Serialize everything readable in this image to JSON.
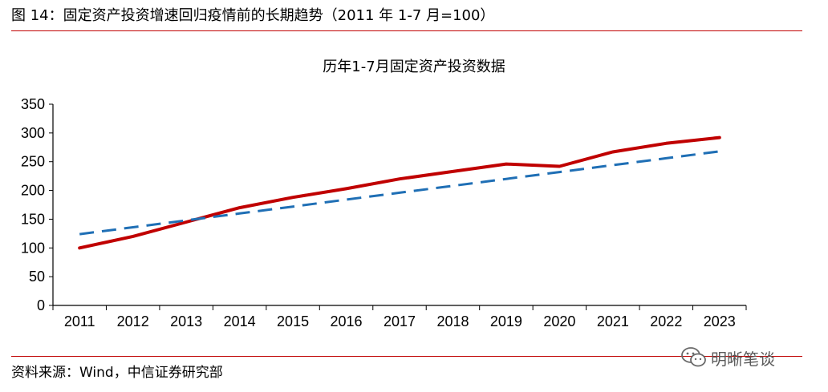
{
  "figure": {
    "title": "图 14：固定资产投资增速回归疫情前的长期趋势（2011 年 1-7 月=100）",
    "source": "资料来源：Wind，中信证券研究部",
    "watermark": "明晰笔谈",
    "watermark_icon": "wechat-icon",
    "accent_color": "#c00000"
  },
  "chart_data": {
    "type": "line",
    "title": "历年1-7月固定资产投资数据",
    "xlabel": "",
    "ylabel": "",
    "categories": [
      "2011",
      "2012",
      "2013",
      "2014",
      "2015",
      "2016",
      "2017",
      "2018",
      "2019",
      "2020",
      "2021",
      "2022",
      "2023"
    ],
    "ylim": [
      0,
      350
    ],
    "yticks": [
      0,
      50,
      100,
      150,
      200,
      250,
      300,
      350
    ],
    "grid": false,
    "legend": "none",
    "series": [
      {
        "color": "#c00000",
        "style": "solid",
        "values": [
          100,
          120,
          145,
          170,
          188,
          203,
          220,
          233,
          246,
          242,
          267,
          282,
          292
        ]
      },
      {
        "color": "#1f6fb5",
        "style": "dashed",
        "values": [
          124,
          136,
          148,
          160,
          172,
          184,
          196,
          208,
          220,
          232,
          244,
          256,
          268
        ]
      }
    ]
  }
}
